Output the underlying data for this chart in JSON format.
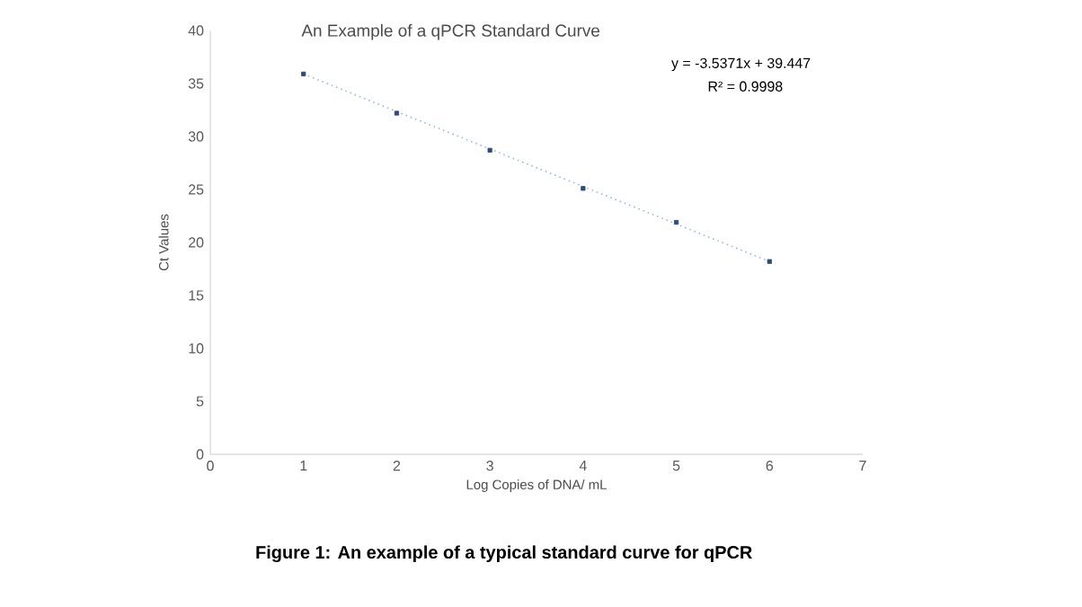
{
  "chart_data": {
    "type": "scatter",
    "title": "An Example of a qPCR Standard Curve",
    "xlabel": "Log Copies of DNA/ mL",
    "ylabel": "Ct Values",
    "x": [
      1,
      2,
      3,
      4,
      5,
      6
    ],
    "series": [
      {
        "color": "#2f4a7a",
        "values": [
          35.9,
          32.2,
          28.7,
          25.1,
          21.9,
          18.2
        ],
        "marker": "square"
      },
      {
        "type": "line",
        "color": "#9db7d9",
        "x": [
          1,
          6
        ],
        "values": [
          35.9,
          18.2
        ],
        "line_style": "dotted",
        "marker": "none"
      }
    ],
    "xlim": [
      0,
      7
    ],
    "xticks": [
      0,
      1,
      2,
      3,
      4,
      5,
      6,
      7
    ],
    "ylim": [
      0,
      40
    ],
    "yticks": [
      0,
      5,
      10,
      15,
      20,
      25,
      30,
      35,
      40
    ],
    "grid": false,
    "annotations": [
      "y = -3.5371x + 39.447",
      "R² = 0.9998",
      "**Figure 1: An example of a typical standard curve for qPCR**"
    ]
  }
}
